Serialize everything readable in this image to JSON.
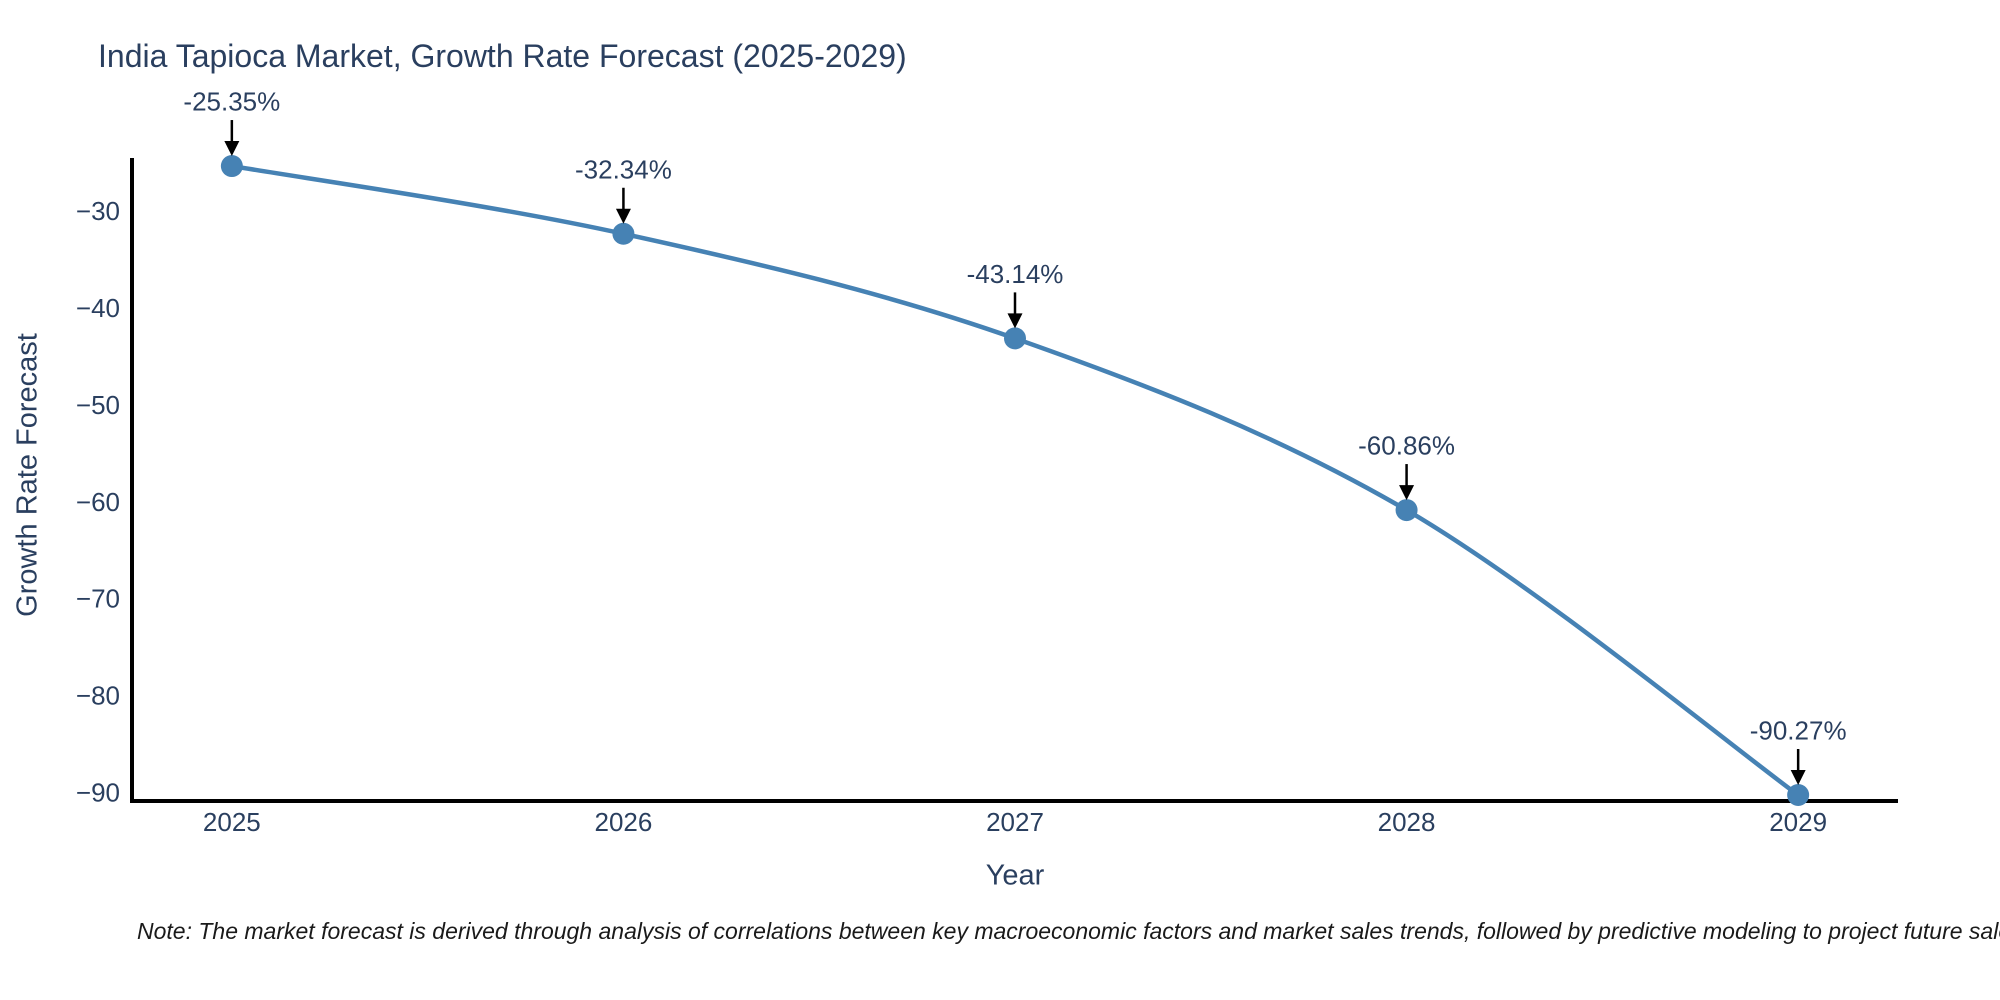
{
  "footnote": "Note: The market forecast is derived through analysis of correlations between key macroeconomic factors and market sales trends, followed by predictive modeling to project future sales.",
  "chart_data": {
    "type": "line",
    "title": "India Tapioca Market, Growth Rate Forecast (2025-2029)",
    "xlabel": "Year",
    "ylabel": "Growth Rate Forecast",
    "categories": [
      2025,
      2026,
      2027,
      2028,
      2029
    ],
    "series": [
      {
        "name": "Growth Rate Forecast",
        "values": [
          -25.35,
          -32.34,
          -43.14,
          -60.86,
          -90.27
        ]
      }
    ],
    "point_labels": [
      "-25.35%",
      "-32.34%",
      "-43.14%",
      "-60.86%",
      "-90.27%"
    ],
    "y_ticks": [
      -30,
      -40,
      -50,
      -60,
      -70,
      -80,
      -90
    ],
    "y_tick_labels": [
      "−30",
      "−40",
      "−50",
      "−60",
      "−70",
      "−80",
      "−90"
    ],
    "x_tick_labels": [
      "2025",
      "2026",
      "2027",
      "2028",
      "2029"
    ],
    "xlim": [
      2024.745,
      2029.255
    ],
    "ylim": [
      -90.89,
      -24.52
    ],
    "grid": false,
    "legend": false,
    "line_shape": "spline",
    "colors": {
      "line": "#4682b4",
      "marker": "#4682b4",
      "axis": "#000000",
      "text": "#2a3f5f",
      "annotation_text": "#2a3f5f",
      "annotation_arrow": "#000000",
      "background": "#ffffff"
    }
  }
}
